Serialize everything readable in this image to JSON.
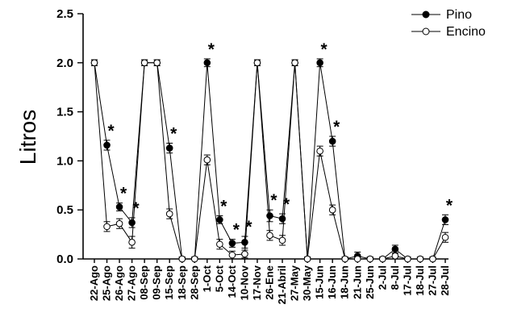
{
  "chart_data": {
    "type": "line",
    "ylabel": "Litros",
    "ylim": [
      0,
      2.5
    ],
    "yticks": [
      "0.0",
      "0.5",
      "1.0",
      "1.5",
      "2.0",
      "2.5"
    ],
    "categories": [
      "22-Ago",
      "25-Ago",
      "26-Ago",
      "27-Ago",
      "08-Sep",
      "09-Sep",
      "15-Sep",
      "18-Sep",
      "28-Sep",
      "1-Oct",
      "5-Oct",
      "14-Oct",
      "10-Nov",
      "17-Nov",
      "26-Ene",
      "21-Abril",
      "27-May",
      "30-May",
      "15-Jun",
      "16-Jun",
      "18-Jun",
      "21-Jun",
      "25-Jun",
      "2-Jul",
      "8-Jul",
      "17-Jul",
      "18-Jul",
      "27-Jul",
      "28-Jul"
    ],
    "series": [
      {
        "name": "Pino",
        "marker": "filled-circle",
        "values": [
          2.0,
          1.16,
          0.53,
          0.37,
          2.0,
          2.0,
          1.13,
          0.0,
          0.0,
          2.0,
          0.4,
          0.16,
          0.17,
          2.0,
          0.44,
          0.41,
          2.0,
          0.0,
          2.0,
          1.2,
          0.0,
          0.03,
          0.0,
          0.0,
          0.1,
          0.0,
          0.0,
          0.0,
          0.4
        ],
        "errors": [
          0.03,
          0.05,
          0.04,
          0.05,
          0.03,
          0.03,
          0.05,
          0.02,
          0.02,
          0.04,
          0.04,
          0.04,
          0.06,
          0.03,
          0.06,
          0.05,
          0.03,
          0.02,
          0.04,
          0.05,
          0.02,
          0.04,
          0.02,
          0.02,
          0.04,
          0.02,
          0.02,
          0.02,
          0.05
        ]
      },
      {
        "name": "Encino",
        "marker": "open-circle",
        "values": [
          2.0,
          0.33,
          0.36,
          0.17,
          2.0,
          2.0,
          0.46,
          0.0,
          0.0,
          1.01,
          0.15,
          0.04,
          0.05,
          2.0,
          0.24,
          0.19,
          2.0,
          0.0,
          1.1,
          0.5,
          0.0,
          0.0,
          0.0,
          0.0,
          0.03,
          0.0,
          0.0,
          0.0,
          0.22
        ],
        "errors": [
          0.03,
          0.05,
          0.05,
          0.06,
          0.03,
          0.03,
          0.05,
          0.02,
          0.02,
          0.05,
          0.05,
          0.04,
          0.04,
          0.03,
          0.05,
          0.05,
          0.03,
          0.02,
          0.05,
          0.05,
          0.02,
          0.02,
          0.02,
          0.02,
          0.03,
          0.02,
          0.02,
          0.02,
          0.05
        ]
      }
    ],
    "significance_marks": [
      1,
      2,
      3,
      6,
      9,
      10,
      11,
      12,
      14,
      15,
      18,
      19,
      28
    ],
    "significance_symbol": "*",
    "legend": {
      "placement": "top-right",
      "entries": [
        "Pino",
        "Encino"
      ]
    },
    "grid": false
  }
}
